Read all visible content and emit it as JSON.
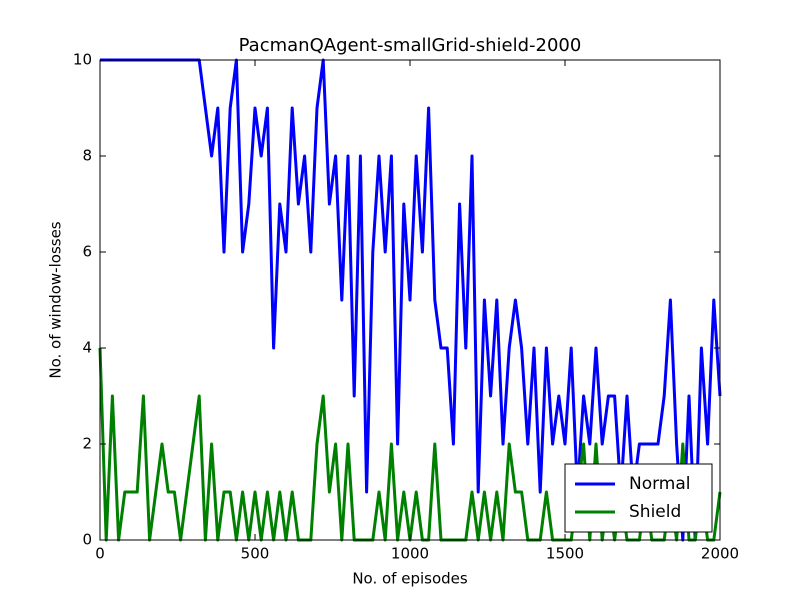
{
  "chart_data": {
    "type": "line",
    "title": "PacmanQAgent-smallGrid-shield-2000",
    "xlabel": "No. of episodes",
    "ylabel": "No. of window-losses",
    "x": [
      0,
      20,
      40,
      60,
      80,
      100,
      120,
      140,
      160,
      180,
      200,
      220,
      240,
      260,
      280,
      300,
      320,
      340,
      360,
      380,
      400,
      420,
      440,
      460,
      480,
      500,
      520,
      540,
      560,
      580,
      600,
      620,
      640,
      660,
      680,
      700,
      720,
      740,
      760,
      780,
      800,
      820,
      840,
      860,
      880,
      900,
      920,
      940,
      960,
      980,
      1000,
      1020,
      1040,
      1060,
      1080,
      1100,
      1120,
      1140,
      1160,
      1180,
      1200,
      1220,
      1240,
      1260,
      1280,
      1300,
      1320,
      1340,
      1360,
      1380,
      1400,
      1420,
      1440,
      1460,
      1480,
      1500,
      1520,
      1540,
      1560,
      1580,
      1600,
      1620,
      1640,
      1660,
      1680,
      1700,
      1720,
      1740,
      1760,
      1780,
      1800,
      1820,
      1840,
      1860,
      1880,
      1900,
      1920,
      1940,
      1960,
      1980,
      2000
    ],
    "series": [
      {
        "name": "Normal",
        "color": "#0000ff",
        "values": [
          10,
          10,
          10,
          10,
          10,
          10,
          10,
          10,
          10,
          10,
          10,
          10,
          10,
          10,
          10,
          10,
          10,
          9,
          8,
          9,
          6,
          9,
          10,
          6,
          7,
          9,
          8,
          9,
          4,
          7,
          6,
          9,
          7,
          8,
          6,
          9,
          10,
          7,
          8,
          5,
          8,
          3,
          8,
          1,
          6,
          8,
          6,
          8,
          2,
          7,
          5,
          8,
          6,
          9,
          5,
          4,
          4,
          2,
          7,
          4,
          8,
          1,
          5,
          3,
          5,
          2,
          4,
          5,
          4,
          2,
          4,
          1,
          4,
          2,
          3,
          2,
          4,
          1,
          3,
          2,
          4,
          2,
          3,
          3,
          1,
          3,
          1,
          2,
          2,
          2,
          2,
          3,
          5,
          2,
          0,
          3,
          0,
          4,
          2,
          5,
          3
        ]
      },
      {
        "name": "Shield",
        "color": "#008000",
        "values": [
          4,
          0,
          3,
          0,
          1,
          1,
          1,
          3,
          0,
          1,
          2,
          1,
          1,
          0,
          1,
          2,
          3,
          0,
          2,
          0,
          1,
          1,
          0,
          1,
          0,
          1,
          0,
          1,
          0,
          1,
          0,
          1,
          0,
          0,
          0,
          2,
          3,
          1,
          2,
          0,
          2,
          0,
          0,
          0,
          0,
          1,
          0,
          2,
          0,
          1,
          0,
          1,
          0,
          0,
          2,
          0,
          0,
          0,
          0,
          0,
          1,
          0,
          1,
          0,
          1,
          0,
          2,
          1,
          1,
          0,
          0,
          0,
          1,
          0,
          0,
          0,
          0,
          1,
          2,
          0,
          2,
          0,
          1,
          0,
          1,
          0,
          0,
          0,
          1,
          0,
          0,
          0,
          1,
          0,
          2,
          0,
          0,
          1,
          0,
          0,
          1
        ]
      }
    ],
    "xlim": [
      0,
      2000
    ],
    "xticks": [
      0,
      500,
      1000,
      1500,
      2000
    ],
    "ylim": [
      0,
      10
    ],
    "yticks": [
      0,
      2,
      4,
      6,
      8,
      10
    ],
    "legend": "lower right"
  }
}
